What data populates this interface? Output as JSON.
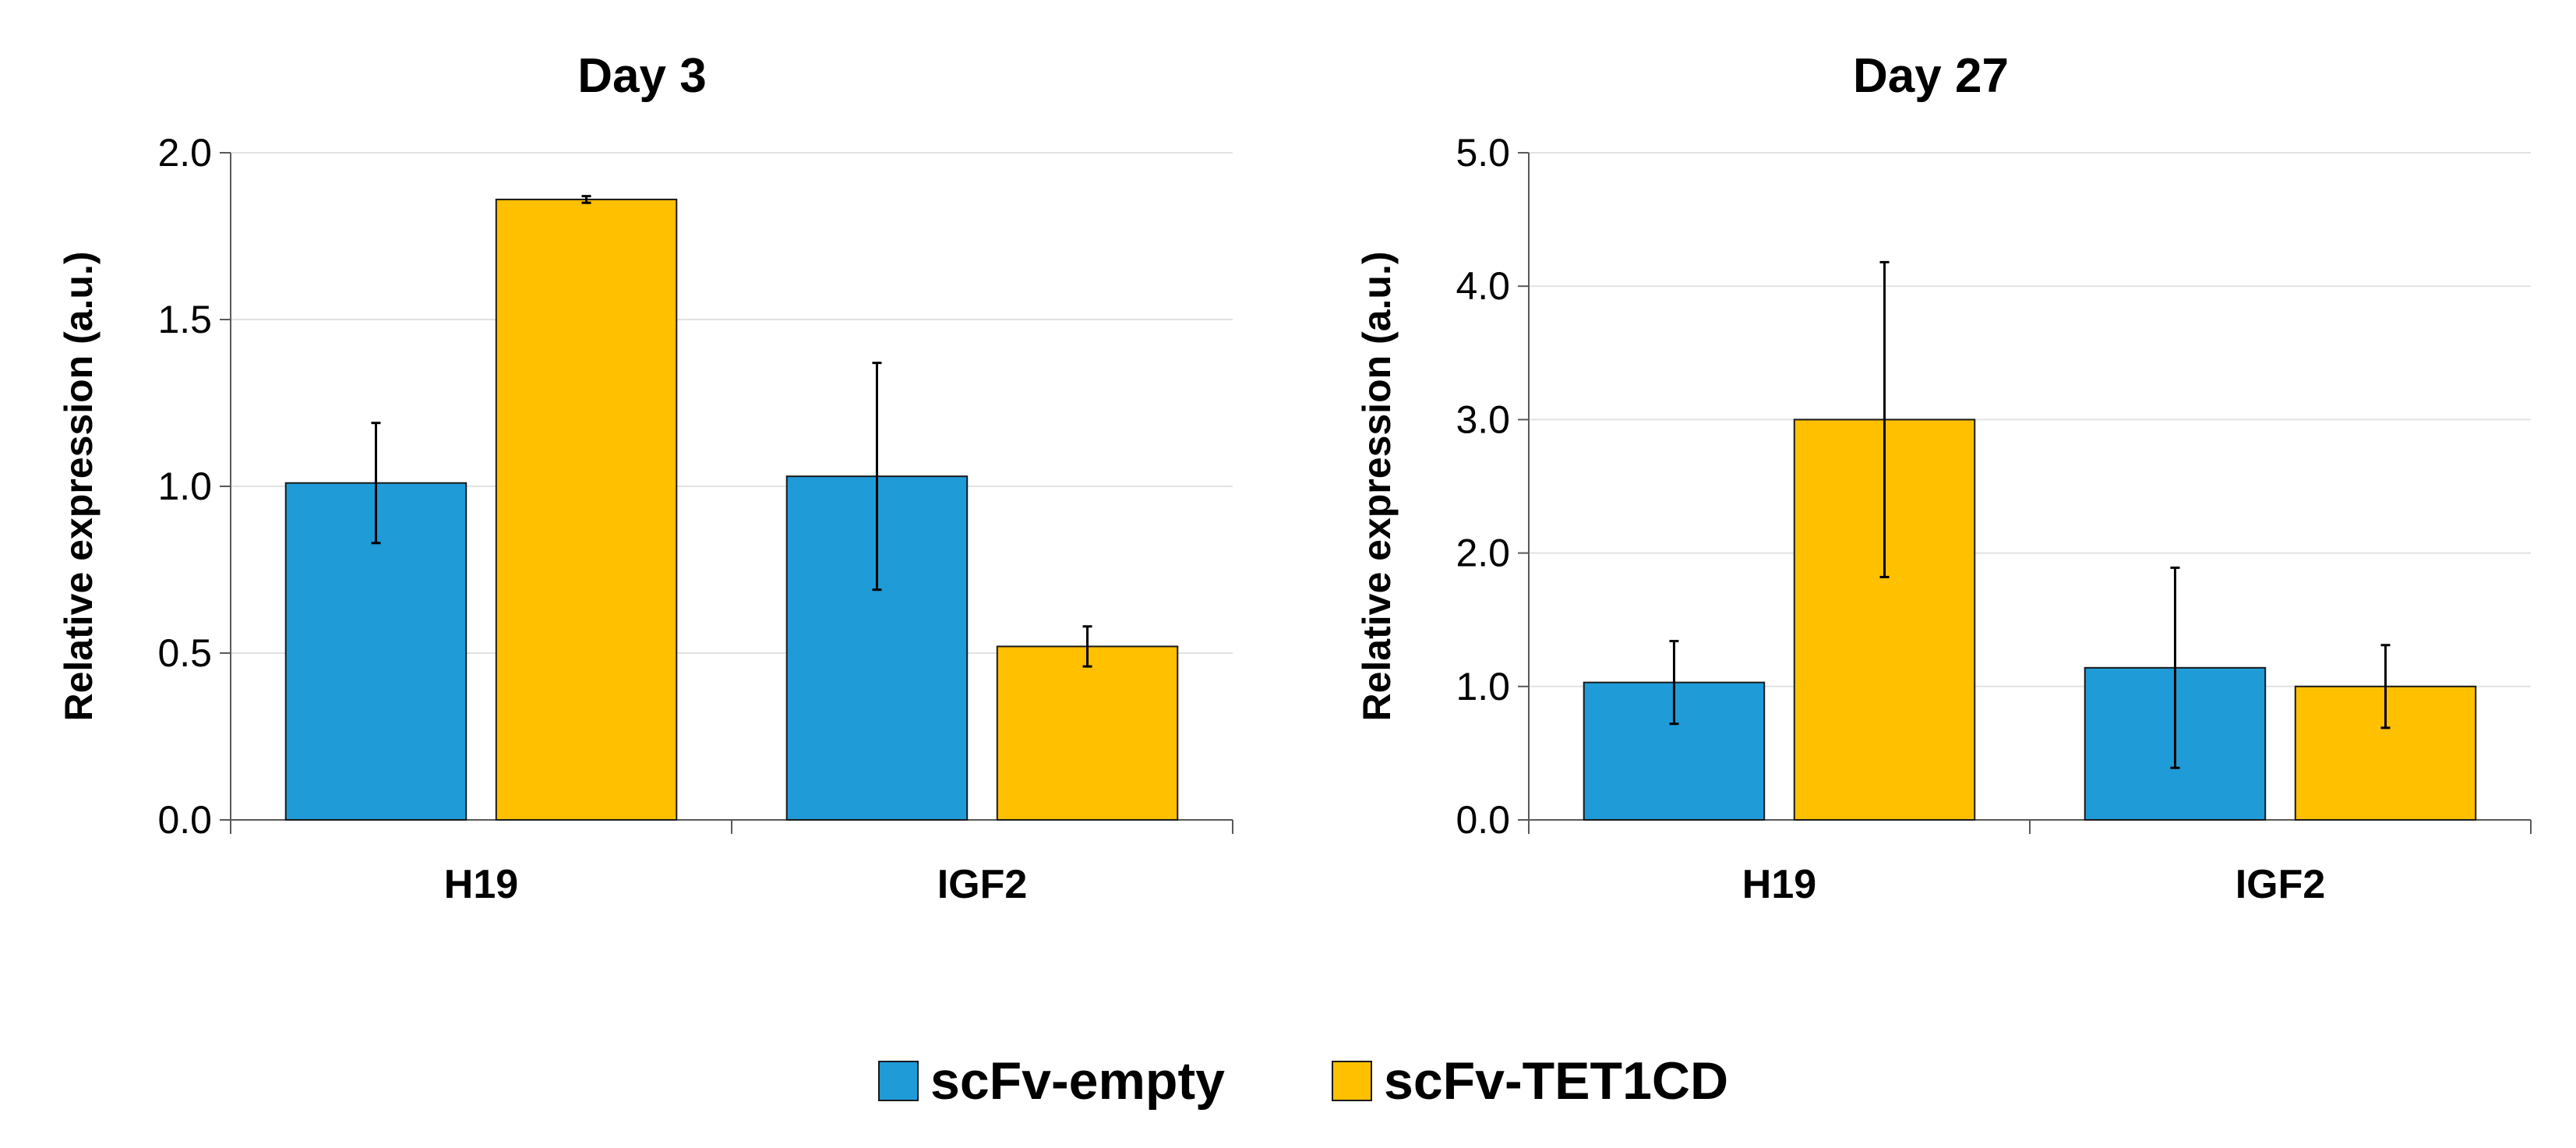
{
  "chart_data": [
    {
      "type": "bar",
      "title": "Day 3",
      "xlabel": "",
      "ylabel": "Relative expression (a.u.)",
      "ylim": [
        0,
        2.0
      ],
      "yticks": [
        "0.0",
        "0.5",
        "1.0",
        "1.5",
        "2.0"
      ],
      "ytick_values": [
        0,
        0.5,
        1.0,
        1.5,
        2.0
      ],
      "grid": true,
      "categories": [
        "H19",
        "IGF2"
      ],
      "series": [
        {
          "name": "scFv-empty",
          "color": "#1f9bd7",
          "values": [
            1.01,
            1.03
          ],
          "errors": [
            0.18,
            0.34
          ]
        },
        {
          "name": "scFv-TET1CD",
          "color": "#ffc000",
          "values": [
            1.86,
            0.52
          ],
          "errors": [
            0.01,
            0.06
          ]
        }
      ]
    },
    {
      "type": "bar",
      "title": "Day 27",
      "xlabel": "",
      "ylabel": "Relative expression (a.u.)",
      "ylim": [
        0,
        5.0
      ],
      "yticks": [
        "0.0",
        "1.0",
        "2.0",
        "3.0",
        "4.0",
        "5.0"
      ],
      "ytick_values": [
        0,
        1.0,
        2.0,
        3.0,
        4.0,
        5.0
      ],
      "grid": true,
      "categories": [
        "H19",
        "IGF2"
      ],
      "series": [
        {
          "name": "scFv-empty",
          "color": "#1f9bd7",
          "values": [
            1.03,
            1.14
          ],
          "errors": [
            0.31,
            0.75
          ]
        },
        {
          "name": "scFv-TET1CD",
          "color": "#ffc000",
          "values": [
            3.0,
            1.0
          ],
          "errors": [
            1.18,
            0.31
          ]
        }
      ]
    }
  ],
  "legend": {
    "position": "bottom-center",
    "items": [
      {
        "label": "scFv-empty",
        "color": "#1f9bd7"
      },
      {
        "label": "scFv-TET1CD",
        "color": "#ffc000"
      }
    ]
  }
}
